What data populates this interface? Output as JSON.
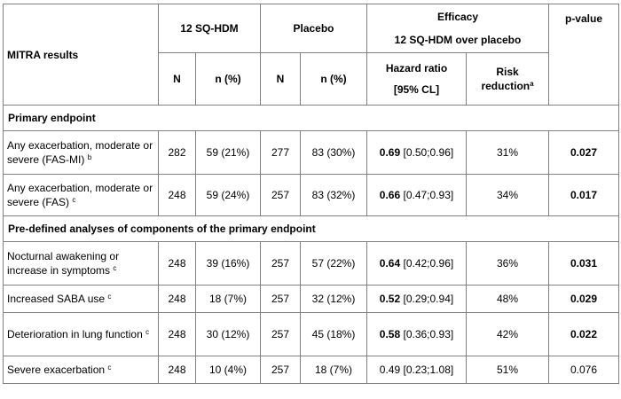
{
  "table": {
    "corner_label": "MITRA results",
    "group_headers": {
      "treatment": "12 SQ-HDM",
      "placebo": "Placebo",
      "efficacy_line1": "Efficacy",
      "efficacy_line2": "12 SQ-HDM over placebo",
      "pvalue": "p-value"
    },
    "sub_headers": {
      "n1": "N",
      "pct1": "n (%)",
      "n2": "N",
      "pct2": "n (%)",
      "hr_line1": "Hazard ratio",
      "hr_line2": "[95% CL]",
      "risk_line1": "Risk",
      "risk_line2": "reduction",
      "risk_sup": "a"
    },
    "sections": [
      {
        "title": "Primary endpoint",
        "rows": [
          {
            "label": "Any exacerbation, moderate or severe (FAS-MI)",
            "sup": "b",
            "n1": "282",
            "pct1": "59 (21%)",
            "n2": "277",
            "pct2": "83 (30%)",
            "hr": "0.69",
            "ci": "[0.50;0.96]",
            "risk": "31%",
            "p": "0.027",
            "significant": true
          },
          {
            "label": "Any exacerbation, moderate or severe (FAS)",
            "sup": "c",
            "n1": "248",
            "pct1": "59 (24%)",
            "n2": "257",
            "pct2": "83 (32%)",
            "hr": "0.66",
            "ci": "[0.47;0.93]",
            "risk": "34%",
            "p": "0.017",
            "significant": true
          }
        ]
      },
      {
        "title": "Pre-defined analyses of components of the primary endpoint",
        "rows": [
          {
            "label": "Nocturnal awakening or increase in symptoms",
            "sup": "c",
            "n1": "248",
            "pct1": "39 (16%)",
            "n2": "257",
            "pct2": "57 (22%)",
            "hr": "0.64",
            "ci": "[0.42;0.96]",
            "risk": "36%",
            "p": "0.031",
            "significant": true
          },
          {
            "label": "Increased SABA use",
            "sup": "c",
            "n1": "248",
            "pct1": "18 (7%)",
            "n2": "257",
            "pct2": "32 (12%)",
            "hr": "0.52",
            "ci": "[0.29;0.94]",
            "risk": "48%",
            "p": "0.029",
            "significant": true
          },
          {
            "label": "Deterioration in lung function",
            "sup": "c",
            "n1": "248",
            "pct1": "30 (12%)",
            "n2": "257",
            "pct2": "45 (18%)",
            "hr": "0.58",
            "ci": "[0.36;0.93]",
            "risk": "42%",
            "p": "0.022",
            "significant": true
          },
          {
            "label": "Severe exacerbation",
            "sup": "c",
            "n1": "248",
            "pct1": "10 (4%)",
            "n2": "257",
            "pct2": "18 (7%)",
            "hr": "0.49",
            "ci": "[0.23;1.08]",
            "risk": "51%",
            "p": "0.076",
            "significant": false
          }
        ]
      }
    ]
  }
}
